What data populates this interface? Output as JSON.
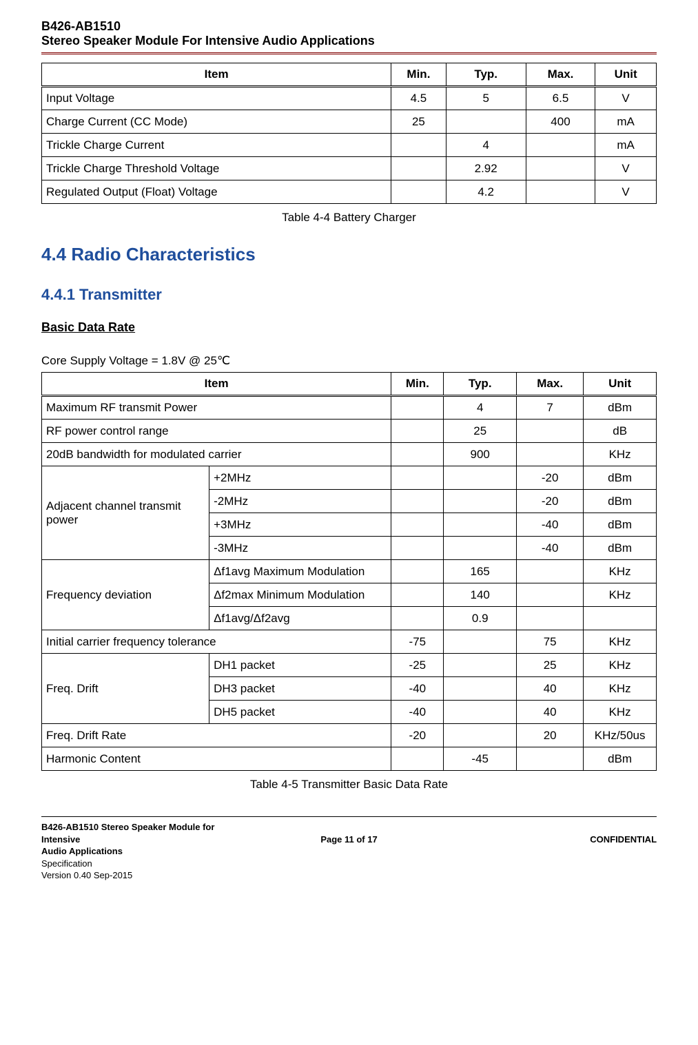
{
  "header": {
    "line1": "B426-AB1510",
    "line2": "Stereo Speaker Module For Intensive Audio Applications"
  },
  "table_a": {
    "columns": [
      "Item",
      "Min.",
      "Typ.",
      "Max.",
      "Unit"
    ],
    "rows": [
      [
        "Input Voltage",
        "4.5",
        "5",
        "6.5",
        "V"
      ],
      [
        "Charge Current (CC Mode)",
        "25",
        "",
        "400",
        "mA"
      ],
      [
        "Trickle Charge Current",
        "",
        "4",
        "",
        "mA"
      ],
      [
        "Trickle Charge Threshold Voltage",
        "",
        "2.92",
        "",
        "V"
      ],
      [
        "Regulated Output (Float) Voltage",
        "",
        "4.2",
        "",
        "V"
      ]
    ],
    "caption": "Table 4-4 Battery Charger"
  },
  "section": {
    "h2": "4.4 Radio Characteristics",
    "h3": "4.4.1    Transmitter",
    "bdr": "Basic Data Rate",
    "pretext": "Core Supply Voltage = 1.8V @ 25℃"
  },
  "table_b": {
    "columns": [
      "Item",
      "Min.",
      "Typ.",
      "Max.",
      "Unit"
    ],
    "col_widths": {
      "item1": 240,
      "item2": 240,
      "min": 72,
      "typ": 100,
      "max": 92,
      "unit": 100
    },
    "groups": [
      {
        "span": 2,
        "cells": [
          "Maximum RF transmit Power",
          "",
          "4",
          "7",
          "dBm"
        ]
      },
      {
        "span": 2,
        "cells": [
          "RF power control range",
          "",
          "25",
          "",
          "dB"
        ]
      },
      {
        "span": 2,
        "cells": [
          "20dB bandwidth for modulated carrier",
          "",
          "900",
          "",
          "KHz"
        ]
      },
      {
        "label": "Adjacent channel transmit power",
        "rows": [
          [
            "+2MHz",
            "",
            "",
            "-20",
            "dBm"
          ],
          [
            "-2MHz",
            "",
            "",
            "-20",
            "dBm"
          ],
          [
            "+3MHz",
            "",
            "",
            "-40",
            "dBm"
          ],
          [
            "-3MHz",
            "",
            "",
            "-40",
            "dBm"
          ]
        ]
      },
      {
        "label": "Frequency deviation",
        "rows": [
          [
            "Δf1avg Maximum Modulation",
            "",
            "165",
            "",
            "KHz"
          ],
          [
            "Δf2max Minimum Modulation",
            "",
            "140",
            "",
            "KHz"
          ],
          [
            "Δf1avg/Δf2avg",
            "",
            "0.9",
            "",
            ""
          ]
        ]
      },
      {
        "span": 2,
        "cells": [
          "Initial carrier frequency tolerance",
          "-75",
          "",
          "75",
          "KHz"
        ]
      },
      {
        "label": "Freq. Drift",
        "rows": [
          [
            "DH1 packet",
            "-25",
            "",
            "25",
            "KHz"
          ],
          [
            "DH3 packet",
            "-40",
            "",
            "40",
            "KHz"
          ],
          [
            "DH5 packet",
            "-40",
            "",
            "40",
            "KHz"
          ]
        ]
      },
      {
        "span": 2,
        "cells": [
          "Freq. Drift Rate",
          "-20",
          "",
          "20",
          "KHz/50us"
        ]
      },
      {
        "span": 2,
        "cells": [
          "Harmonic Content",
          "",
          "-45",
          "",
          "dBm"
        ]
      }
    ],
    "caption": "Table 4-5 Transmitter Basic Data Rate"
  },
  "footer": {
    "left1": "B426-AB1510 Stereo Speaker Module for Intensive",
    "left2": "Audio Applications",
    "left3": "Specification",
    "left4": "Version 0.40 Sep-2015",
    "center": "Page 11 of 17",
    "right": "CONFIDENTIAL"
  },
  "colors": {
    "heading": "#1f4e9c",
    "rule": "#800000",
    "border": "#000000",
    "text": "#000000"
  }
}
